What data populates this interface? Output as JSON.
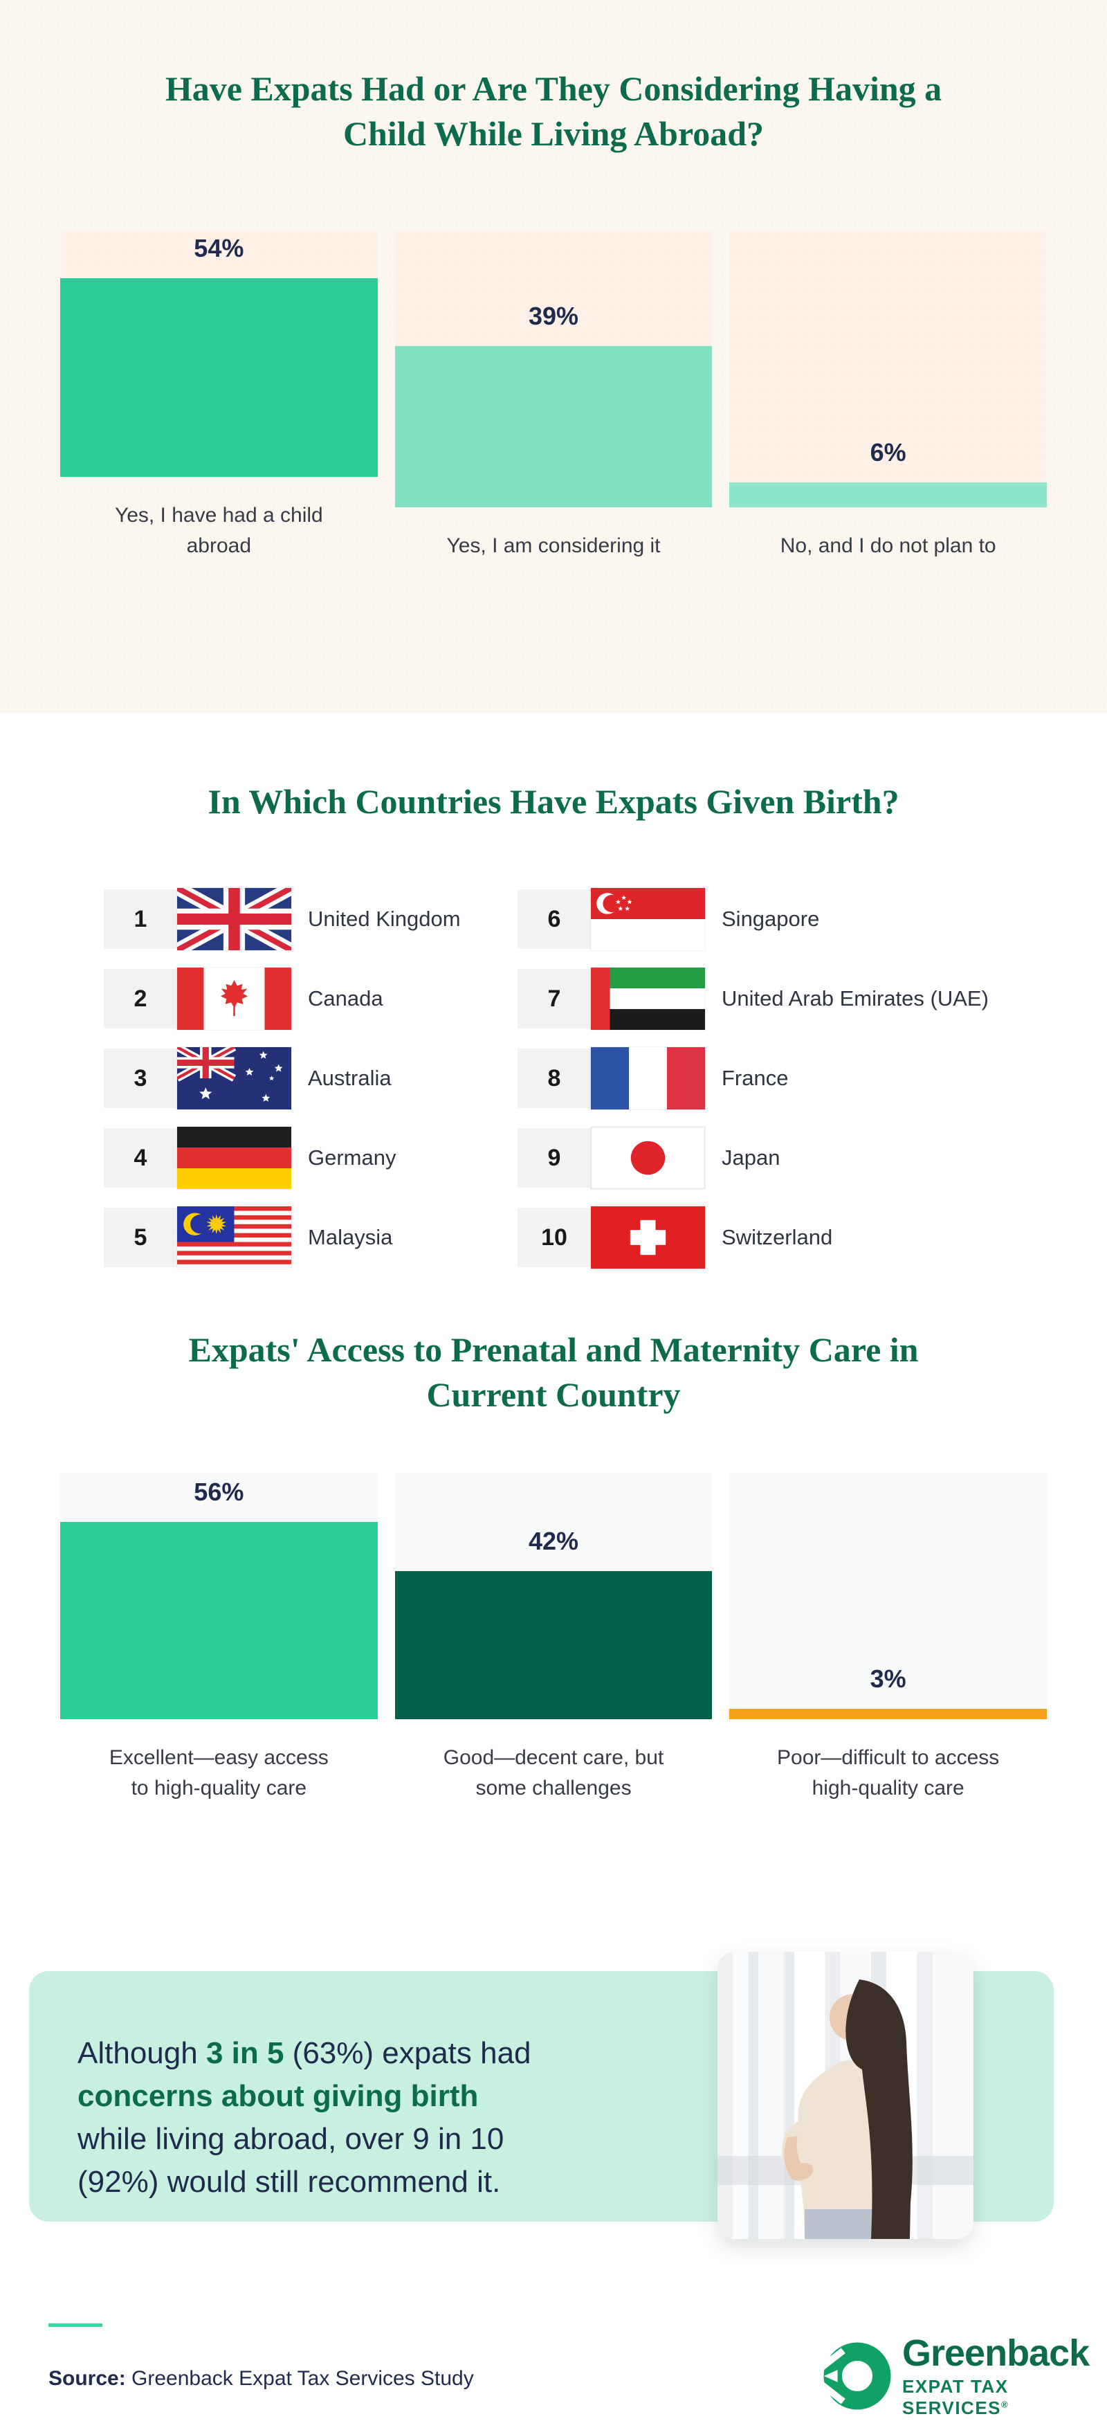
{
  "hero": {
    "title": "Have Expats Had or Are They Considering Having a\nChild While Living Abroad?"
  },
  "chart_data": [
    {
      "type": "bar",
      "title": "Have Expats Had or Are They Considering Having a Child While Living Abroad?",
      "categories": [
        "Yes, I have had a child\nabroad",
        "Yes, I am considering it",
        "No, and I do not plan to"
      ],
      "values": [
        54,
        39,
        6
      ],
      "unit": "%",
      "bar_colors": [
        "#2BCD99",
        "#82E0C2",
        "#8FE5CB"
      ],
      "panel_bg": "#FDF1E7",
      "ylim": [
        0,
        67
      ],
      "grid": false,
      "legend": "none"
    },
    {
      "type": "bar",
      "title": "Expats' Access to Prenatal and Maternity Care in Current Country",
      "categories": [
        "Excellent—easy access\nto high-quality care",
        "Good—decent care, but\nsome challenges",
        "Poor—difficult to access\nhigh-quality care"
      ],
      "values": [
        56,
        42,
        3
      ],
      "unit": "%",
      "bar_colors": [
        "#2BCD99",
        "#05604A",
        "#F9A01B"
      ],
      "panel_bg": "#F8F9F9",
      "ylim": [
        0,
        70
      ],
      "grid": false,
      "legend": "none"
    }
  ],
  "countries": {
    "title": "In Which Countries Have Expats Given Birth?",
    "items": [
      {
        "rank": "1",
        "name": "United Kingdom",
        "flag": "uk"
      },
      {
        "rank": "2",
        "name": "Canada",
        "flag": "canada"
      },
      {
        "rank": "3",
        "name": "Australia",
        "flag": "australia"
      },
      {
        "rank": "4",
        "name": "Germany",
        "flag": "germany"
      },
      {
        "rank": "5",
        "name": "Malaysia",
        "flag": "malaysia"
      },
      {
        "rank": "6",
        "name": "Singapore",
        "flag": "singapore"
      },
      {
        "rank": "7",
        "name": "United Arab Emirates (UAE)",
        "flag": "uae"
      },
      {
        "rank": "8",
        "name": "France",
        "flag": "france"
      },
      {
        "rank": "9",
        "name": "Japan",
        "flag": "japan"
      },
      {
        "rank": "10",
        "name": "Switzerland",
        "flag": "switzerland"
      }
    ]
  },
  "care": {
    "title": "Expats' Access to Prenatal and Maternity Care in\nCurrent Country"
  },
  "callout": {
    "segments": [
      {
        "text": "Although ",
        "style": "normal"
      },
      {
        "text": "3 in 5",
        "style": "bold-green"
      },
      {
        "text": " (63%) expats had\n",
        "style": "normal"
      },
      {
        "text": "concerns about giving birth",
        "style": "bold-green"
      },
      {
        "text": "\nwhile living abroad, over 9 in 10\n(92%) would still recommend it.",
        "style": "normal"
      }
    ]
  },
  "footer": {
    "source_label": "Source:",
    "source_text": " Greenback Expat Tax Services Study",
    "brand_name": "Greenback",
    "brand_tagline": "EXPAT TAX SERVICES",
    "brand_reg": "®"
  },
  "colors": {
    "title_green": "#0B6B4C",
    "navy_text": "#1F2A4D",
    "cream_bg": "#FBF7EE",
    "peach_panel": "#FDF1E7",
    "mint_callout": "#C8F0E1",
    "teal_rule": "#35D6A6",
    "logo_green": "#12A164"
  }
}
